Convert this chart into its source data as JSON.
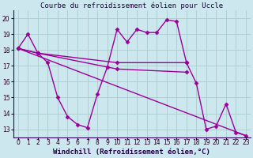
{
  "title": "Courbe du refroidissement éolien pour Uccle",
  "xlabel": "Windchill (Refroidissement éolien,°C)",
  "background_color": "#cce8ee",
  "grid_color": "#aacccc",
  "line_color": "#990099",
  "xlim": [
    -0.5,
    23.5
  ],
  "ylim": [
    12.5,
    20.5
  ],
  "yticks": [
    13,
    14,
    15,
    16,
    17,
    18,
    19,
    20
  ],
  "xticks": [
    0,
    1,
    2,
    3,
    4,
    5,
    6,
    7,
    8,
    9,
    10,
    11,
    12,
    13,
    14,
    15,
    16,
    17,
    18,
    19,
    20,
    21,
    22,
    23
  ],
  "series": [
    {
      "x": [
        0,
        1,
        2,
        3,
        4,
        5,
        6,
        7,
        8,
        9,
        10,
        11,
        12,
        13,
        14,
        15,
        16,
        17,
        18,
        19,
        20,
        21,
        22,
        23
      ],
      "y": [
        18.1,
        19.0,
        17.8,
        17.2,
        15.0,
        13.8,
        13.3,
        13.1,
        15.2,
        16.9,
        19.3,
        18.5,
        19.3,
        19.1,
        19.1,
        19.9,
        19.8,
        17.2,
        15.9,
        13.0,
        13.2,
        14.6,
        12.8,
        12.6
      ]
    },
    {
      "x": [
        0,
        2,
        10,
        17
      ],
      "y": [
        18.1,
        17.8,
        17.2,
        17.2
      ]
    },
    {
      "x": [
        0,
        2,
        10,
        17
      ],
      "y": [
        18.1,
        17.8,
        16.8,
        16.6
      ]
    },
    {
      "x": [
        0,
        23
      ],
      "y": [
        18.1,
        12.6
      ]
    }
  ],
  "marker": "D",
  "marker_size": 2.5,
  "linewidth": 1.0,
  "title_fontsize": 6.5,
  "xlabel_fontsize": 6.5,
  "tick_fontsize": 5.5
}
